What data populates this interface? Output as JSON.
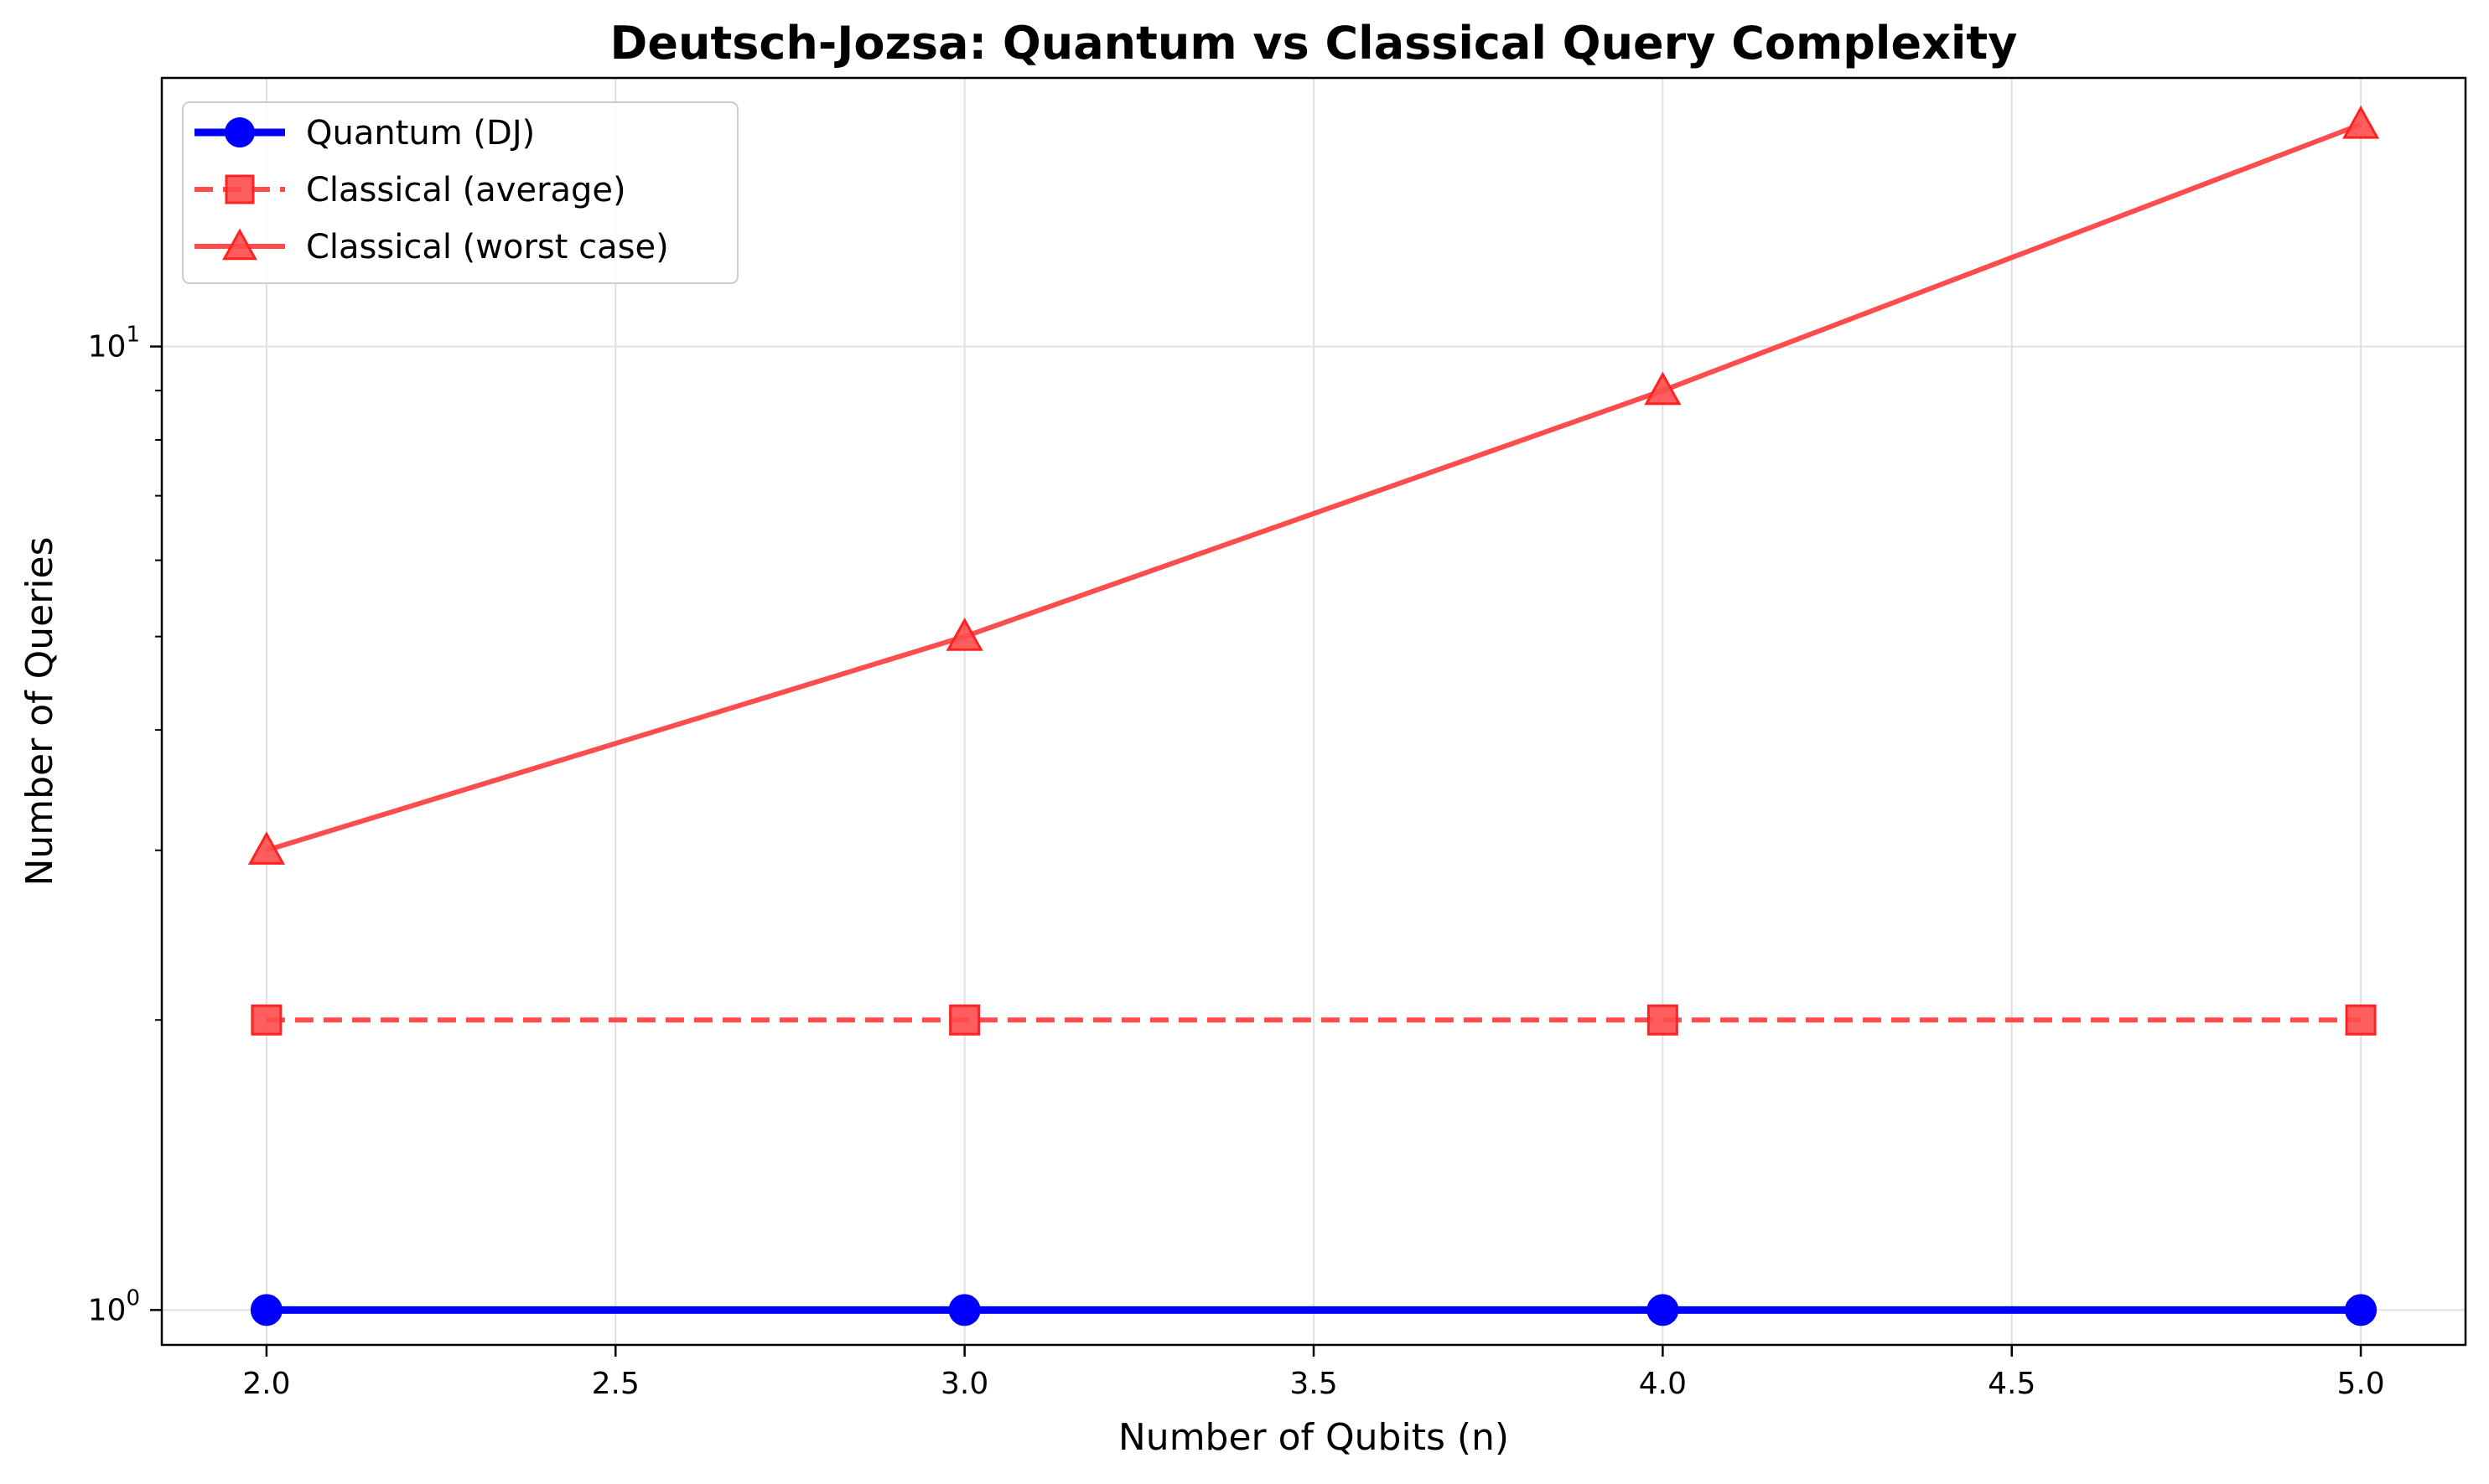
{
  "chart_data": {
    "type": "line",
    "title": "Deutsch-Jozsa: Quantum vs Classical Query Complexity",
    "xlabel": "Number of Qubits (n)",
    "ylabel": "Number of Queries",
    "x": [
      2,
      3,
      4,
      5
    ],
    "xlim": [
      1.85,
      5.15
    ],
    "ylim": [
      0.92,
      19.0
    ],
    "yscale": "log",
    "grid": true,
    "legend_position": "top-left",
    "x_ticks": [
      "2.0",
      "2.5",
      "3.0",
      "3.5",
      "4.0",
      "4.5",
      "5.0"
    ],
    "y_ticks": [
      {
        "base": "10",
        "exp": "0",
        "value": 1
      },
      {
        "base": "10",
        "exp": "1",
        "value": 10
      }
    ],
    "series": [
      {
        "name": "Quantum (DJ)",
        "values": [
          1,
          1,
          1,
          1
        ],
        "color": "#0000ff",
        "marker": "circle",
        "linestyle": "solid"
      },
      {
        "name": "Classical (average)",
        "values": [
          2,
          2,
          2,
          2
        ],
        "color": "#ff4d4d",
        "marker": "square",
        "linestyle": "dashed"
      },
      {
        "name": "Classical (worst case)",
        "values": [
          3,
          5,
          9,
          17
        ],
        "color": "#ff4d4d",
        "marker": "triangle",
        "linestyle": "solid"
      }
    ]
  }
}
